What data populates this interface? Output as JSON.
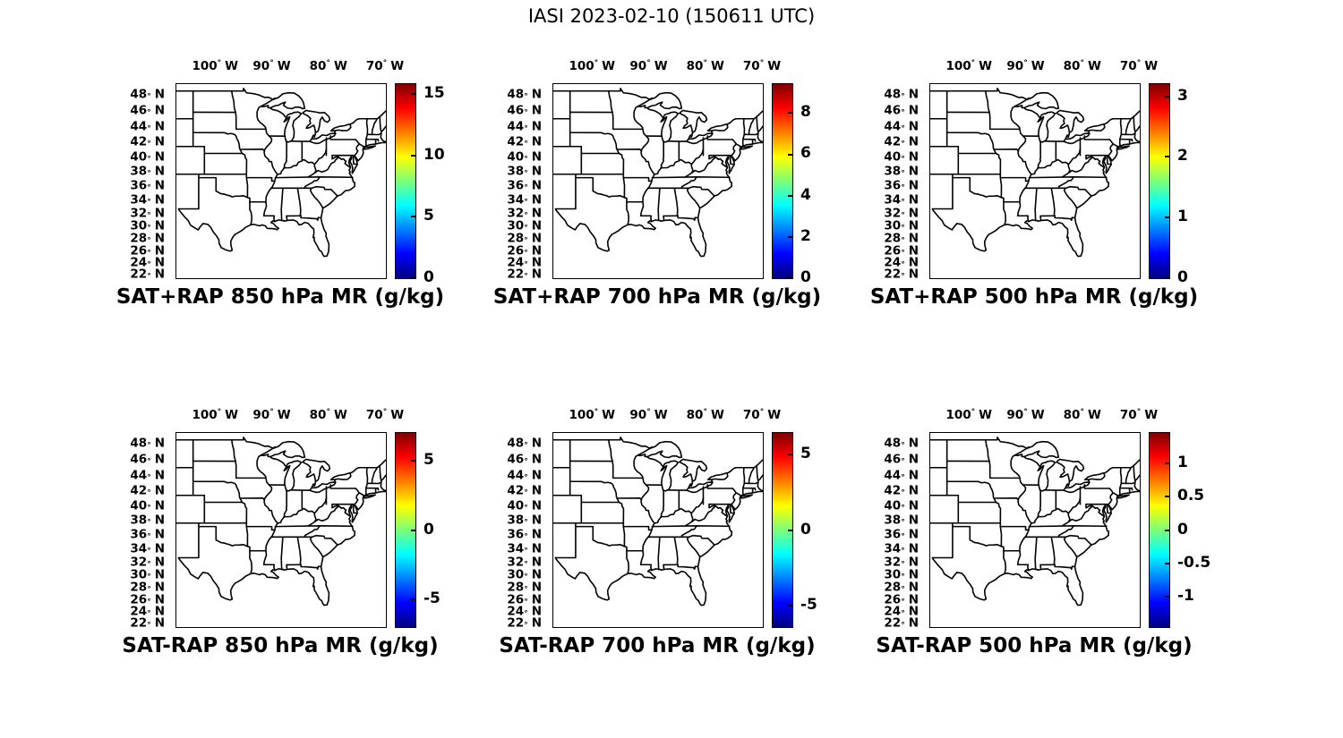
{
  "figure_title": "IASI 2023-02-10 (150611 UTC)",
  "chart_data": {
    "type": "heatmap",
    "title": "IASI 2023-02-10 (150611 UTC)",
    "description": "Six-panel meteorological figure (2 rows x 3 columns) of eastern/central CONUS maps drawn with black state outlines on white; no gridded field values are rendered inside the maps. Top row shows SAT+RAP mixing ratio at 850/700/500 hPa with jet colorbars starting at 0; bottom row shows SAT-RAP differences with symmetric jet colorbars.",
    "grid": "2 rows x 3 columns",
    "map_extent": {
      "lon_west_deg": 107,
      "lon_east_deg": 70,
      "lat_south_deg": 22,
      "lat_north_deg": 50
    },
    "axes": {
      "degree_symbol": "°",
      "lon_suffix": "W",
      "lat_suffix": "N",
      "lon_ticks": [
        "100",
        "90",
        "80",
        "70"
      ],
      "lon_tick_values": [
        100,
        90,
        80,
        70
      ],
      "lat_ticks": [
        "48",
        "46",
        "44",
        "42",
        "40",
        "38",
        "36",
        "34",
        "32",
        "30",
        "28",
        "26",
        "24",
        "22"
      ],
      "lat_tick_values": [
        48,
        46,
        44,
        42,
        40,
        38,
        36,
        34,
        32,
        30,
        28,
        26,
        24,
        22
      ],
      "grid_lines": "off",
      "lon_labels_position": "top",
      "lat_labels_position": "left"
    },
    "colormap": "jet",
    "colors": {
      "jet_stops": [
        "#00007F",
        "#0000FF",
        "#0080FF",
        "#00FFFF",
        "#7CFF79",
        "#FFFF00",
        "#FF7D00",
        "#FF0000",
        "#7F0000"
      ],
      "line_color": "#000000",
      "background": "#FFFFFF",
      "text_color": "#000000"
    },
    "panels": [
      {
        "row": 0,
        "col": 0,
        "title": "SAT+RAP 850 hPa MR (g/kg)",
        "colorbar": {
          "vmin": 0,
          "vmax": 15.8,
          "tick_values": [
            0,
            5,
            10,
            15
          ],
          "tick_labels": [
            "0",
            "5",
            "10",
            "15"
          ]
        }
      },
      {
        "row": 0,
        "col": 1,
        "title": "SAT+RAP 700 hPa MR (g/kg)",
        "colorbar": {
          "vmin": 0,
          "vmax": 9.4,
          "tick_values": [
            0,
            2,
            4,
            6,
            8
          ],
          "tick_labels": [
            "0",
            "2",
            "4",
            "6",
            "8"
          ]
        }
      },
      {
        "row": 0,
        "col": 2,
        "title": "SAT+RAP 500 hPa MR (g/kg)",
        "colorbar": {
          "vmin": 0,
          "vmax": 3.2,
          "tick_values": [
            0,
            1,
            2,
            3
          ],
          "tick_labels": [
            "0",
            "1",
            "2",
            "3"
          ]
        }
      },
      {
        "row": 1,
        "col": 0,
        "title": "SAT-RAP 850 hPa MR (g/kg)",
        "colorbar": {
          "vmin": -7,
          "vmax": 7,
          "tick_values": [
            -5,
            0,
            5
          ],
          "tick_labels": [
            "-5",
            "0",
            "5"
          ]
        }
      },
      {
        "row": 1,
        "col": 1,
        "title": "SAT-RAP 700 hPa MR (g/kg)",
        "colorbar": {
          "vmin": -6.4,
          "vmax": 6.4,
          "tick_values": [
            -5,
            0,
            5
          ],
          "tick_labels": [
            "-5",
            "0",
            "5"
          ]
        }
      },
      {
        "row": 1,
        "col": 2,
        "title": "SAT-RAP 500 hPa MR (g/kg)",
        "colorbar": {
          "vmin": -1.45,
          "vmax": 1.45,
          "tick_values": [
            -1,
            -0.5,
            0,
            0.5,
            1
          ],
          "tick_labels": [
            "-1",
            "-0.5",
            "0",
            "0.5",
            "1"
          ]
        }
      }
    ]
  }
}
